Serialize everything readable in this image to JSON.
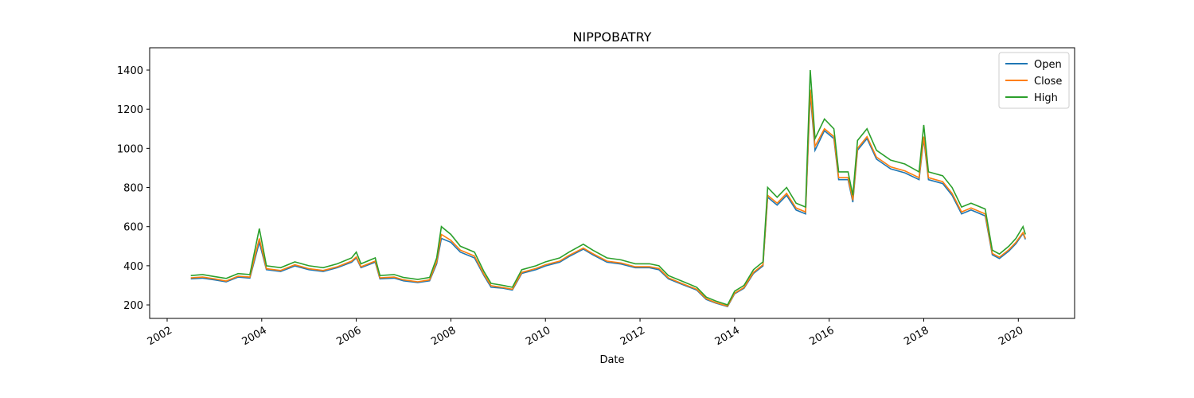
{
  "chart_data": {
    "type": "line",
    "title": "NIPPOBATRY",
    "xlabel": "Date",
    "x": [
      2002.5,
      2002.75,
      2003.0,
      2003.25,
      2003.5,
      2003.75,
      2003.95,
      2004.1,
      2004.4,
      2004.7,
      2005.0,
      2005.3,
      2005.6,
      2005.9,
      2006.0,
      2006.1,
      2006.4,
      2006.5,
      2006.8,
      2007.0,
      2007.3,
      2007.55,
      2007.7,
      2007.8,
      2008.0,
      2008.2,
      2008.5,
      2008.7,
      2008.85,
      2009.1,
      2009.3,
      2009.5,
      2009.8,
      2010.0,
      2010.3,
      2010.5,
      2010.8,
      2011.0,
      2011.3,
      2011.6,
      2011.9,
      2012.2,
      2012.4,
      2012.6,
      2012.9,
      2013.2,
      2013.4,
      2013.6,
      2013.85,
      2014.0,
      2014.2,
      2014.4,
      2014.6,
      2014.7,
      2014.9,
      2015.1,
      2015.3,
      2015.5,
      2015.6,
      2015.7,
      2015.9,
      2016.1,
      2016.2,
      2016.4,
      2016.5,
      2016.6,
      2016.8,
      2017.0,
      2017.3,
      2017.6,
      2017.9,
      2018.0,
      2018.1,
      2018.4,
      2018.6,
      2018.8,
      2019.0,
      2019.3,
      2019.45,
      2019.6,
      2019.8,
      2019.95,
      2020.1,
      2020.15
    ],
    "series": [
      {
        "name": "Open",
        "color": "#1f77b4",
        "values": [
          333,
          337,
          328,
          318,
          342,
          337,
          520,
          380,
          371,
          399,
          380,
          371,
          390,
          418,
          440,
          390,
          418,
          333,
          337,
          323,
          314,
          323,
          410,
          540,
          520,
          470,
          440,
          350,
          290,
          285,
          276,
          361,
          380,
          399,
          418,
          447,
          485,
          456,
          418,
          409,
          390,
          390,
          380,
          333,
          304,
          276,
          228,
          209,
          191,
          257,
          285,
          361,
          399,
          750,
          710,
          760,
          685,
          665,
          1280,
          990,
          1090,
          1050,
          840,
          840,
          725,
          990,
          1050,
          945,
          895,
          875,
          840,
          1050,
          840,
          820,
          760,
          665,
          685,
          655,
          456,
          437,
          475,
          513,
          565,
          535
        ]
      },
      {
        "name": "Close",
        "color": "#ff7f0e",
        "values": [
          338,
          342,
          333,
          322,
          347,
          342,
          540,
          385,
          376,
          405,
          385,
          376,
          395,
          424,
          445,
          395,
          424,
          338,
          342,
          328,
          318,
          328,
          420,
          560,
          530,
          480,
          450,
          356,
          298,
          289,
          280,
          366,
          386,
          405,
          424,
          453,
          490,
          462,
          424,
          414,
          395,
          395,
          386,
          338,
          308,
          280,
          232,
          212,
          194,
          260,
          289,
          366,
          405,
          760,
          720,
          770,
          695,
          675,
          1300,
          1010,
          1100,
          1060,
          850,
          850,
          735,
          1000,
          1060,
          955,
          905,
          885,
          850,
          1060,
          850,
          830,
          770,
          675,
          695,
          665,
          463,
          444,
          482,
          520,
          570,
          540
        ]
      },
      {
        "name": "High",
        "color": "#2ca02c",
        "values": [
          350,
          355,
          345,
          335,
          360,
          355,
          590,
          400,
          390,
          420,
          400,
          390,
          410,
          440,
          470,
          410,
          440,
          350,
          355,
          340,
          330,
          340,
          440,
          600,
          560,
          500,
          470,
          370,
          310,
          300,
          290,
          380,
          400,
          420,
          440,
          470,
          510,
          480,
          440,
          430,
          410,
          410,
          400,
          350,
          320,
          290,
          240,
          220,
          200,
          270,
          300,
          380,
          420,
          800,
          750,
          800,
          720,
          700,
          1400,
          1050,
          1150,
          1100,
          880,
          880,
          760,
          1040,
          1100,
          990,
          940,
          920,
          880,
          1120,
          880,
          860,
          800,
          700,
          720,
          690,
          480,
          460,
          500,
          540,
          600,
          560
        ]
      }
    ],
    "xlim": [
      2001.63,
      2021.19
    ],
    "xticks": [
      2002,
      2004,
      2006,
      2008,
      2010,
      2012,
      2014,
      2016,
      2018,
      2020
    ],
    "ylim": [
      131,
      1514
    ],
    "yticks": [
      200,
      400,
      600,
      800,
      1000,
      1200,
      1400
    ],
    "legend": "upper right"
  }
}
